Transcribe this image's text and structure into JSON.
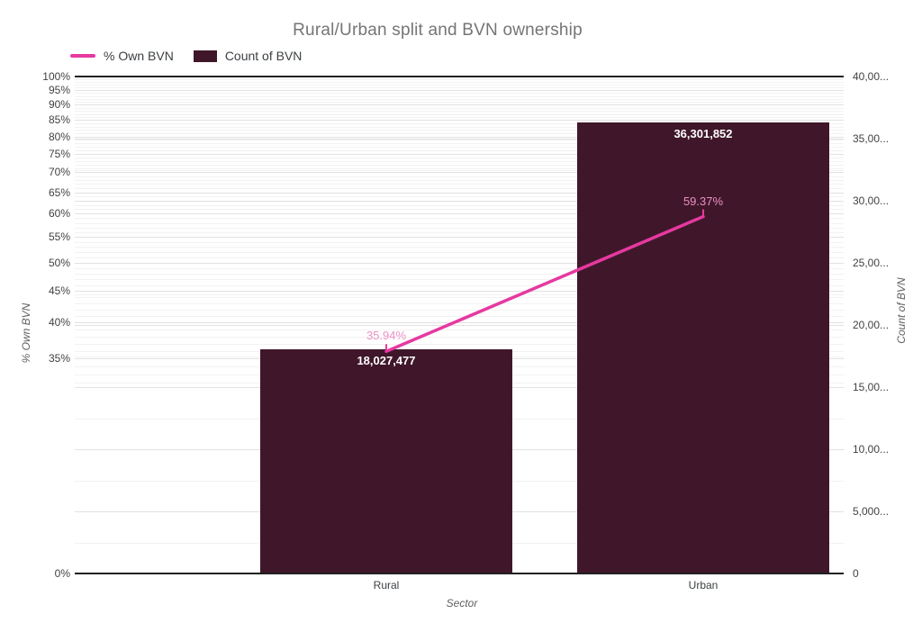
{
  "title": "Rural/Urban split and BVN ownership",
  "legend": {
    "items": [
      {
        "label": "% Own BVN",
        "swatch": "line-swatch"
      },
      {
        "label": "Count of BVN",
        "swatch": "bar-swatch"
      }
    ]
  },
  "colors": {
    "bar": "#40172A",
    "line": "#E639A0",
    "line_point_label": "#EE8FC4",
    "bar_value_label": "#FFFFFF",
    "title_text": "#757575",
    "tick_text": "#424242",
    "category_text": "#3C4043",
    "legend_text": "#3C4043",
    "axis_title_text": "#5F5F5F",
    "grid_major": "#E2E2E2",
    "grid_minor": "#F2F2F2",
    "axis_line": "#212121",
    "background": "#FFFFFF"
  },
  "chart_data": {
    "type": "combo",
    "categories": [
      "Rural",
      "Urban"
    ],
    "xlabel": "Sector",
    "legend_position": "top",
    "grid": true,
    "series": [
      {
        "name": "% Own BVN",
        "chart": "line",
        "axis": "left",
        "values": [
          35.94,
          59.37
        ],
        "point_labels": [
          "35.94%",
          "59.37%"
        ]
      },
      {
        "name": "Count of BVN",
        "chart": "bar",
        "axis": "right",
        "values": [
          18027477,
          36301852
        ],
        "point_labels": [
          "18,027,477",
          "36,301,852"
        ]
      }
    ],
    "left_axis": {
      "title": "% Own BVN",
      "scale": "log",
      "unit": "%",
      "range": [
        0,
        100
      ],
      "ticks": [
        {
          "label": "100%",
          "value": 100
        },
        {
          "label": "95%",
          "value": 95
        },
        {
          "label": "90%",
          "value": 90
        },
        {
          "label": "85%",
          "value": 85
        },
        {
          "label": "80%",
          "value": 80
        },
        {
          "label": "75%",
          "value": 75
        },
        {
          "label": "70%",
          "value": 70
        },
        {
          "label": "65%",
          "value": 65
        },
        {
          "label": "60%",
          "value": 60
        },
        {
          "label": "55%",
          "value": 55
        },
        {
          "label": "50%",
          "value": 50
        },
        {
          "label": "45%",
          "value": 45
        },
        {
          "label": "40%",
          "value": 40
        },
        {
          "label": "35%",
          "value": 35
        },
        {
          "label": "0%",
          "value": 0
        }
      ]
    },
    "right_axis": {
      "title": "Count of BVN",
      "scale": "linear",
      "range": [
        0,
        40000000
      ],
      "ticks": [
        {
          "label": "40,00...",
          "value": 40000000
        },
        {
          "label": "35,00...",
          "value": 35000000
        },
        {
          "label": "30,00...",
          "value": 30000000
        },
        {
          "label": "25,00...",
          "value": 25000000
        },
        {
          "label": "20,00...",
          "value": 20000000
        },
        {
          "label": "15,00...",
          "value": 15000000
        },
        {
          "label": "10,00...",
          "value": 10000000
        },
        {
          "label": "5,000...",
          "value": 5000000
        },
        {
          "label": "0",
          "value": 0
        }
      ]
    }
  }
}
